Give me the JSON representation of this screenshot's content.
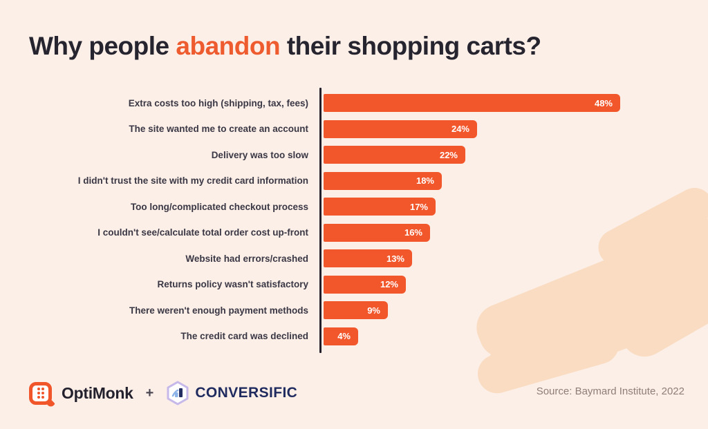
{
  "title": {
    "prefix": "Why people ",
    "highlight": "abandon",
    "suffix": " their shopping carts?"
  },
  "chart_data": {
    "type": "bar",
    "orientation": "horizontal",
    "title": "Why people abandon their shopping carts?",
    "categories": [
      "Extra costs too high (shipping, tax, fees)",
      "The site wanted me to create an account",
      "Delivery was too slow",
      "I didn't trust the site with my credit card information",
      "Too long/complicated checkout process",
      "I couldn't see/calculate total order cost up-front",
      "Website had errors/crashed",
      "Returns policy wasn't satisfactory",
      "There weren't enough payment methods",
      "The credit card was declined"
    ],
    "values": [
      48,
      24,
      22,
      18,
      17,
      16,
      13,
      12,
      9,
      4
    ],
    "value_suffix": "%",
    "xlim": [
      0,
      50
    ],
    "grid": false,
    "legend": false,
    "bar_color": "#f2572b",
    "value_label_color": "#ffffff"
  },
  "footer": {
    "brand_left": "OptiMonk",
    "separator": "+",
    "brand_right": "CONVERSIFIC",
    "source": "Source: Baymard Institute, 2022"
  },
  "colors": {
    "background": "#fcefe8",
    "accent_orange": "#f2572b",
    "title_dark": "#26242f",
    "brand_navy": "#1f2a5e",
    "brush_peach": "#f9dcc1",
    "source_gray": "#8f7e77"
  }
}
